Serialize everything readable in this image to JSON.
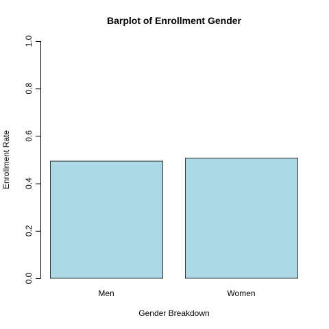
{
  "chart_data": {
    "type": "bar",
    "title": "Barplot of Enrollment Gender",
    "xlabel": "Gender Breakdown",
    "ylabel": "Enrollment Rate",
    "categories": [
      "Men",
      "Women"
    ],
    "values": [
      0.494,
      0.506
    ],
    "ylim": [
      0,
      1
    ],
    "yticks": [
      "0.0",
      "0.2",
      "0.4",
      "0.6",
      "0.8",
      "1.0"
    ],
    "grid": false,
    "bar_color": "#add8e6",
    "bar_border_color": "#333333"
  }
}
